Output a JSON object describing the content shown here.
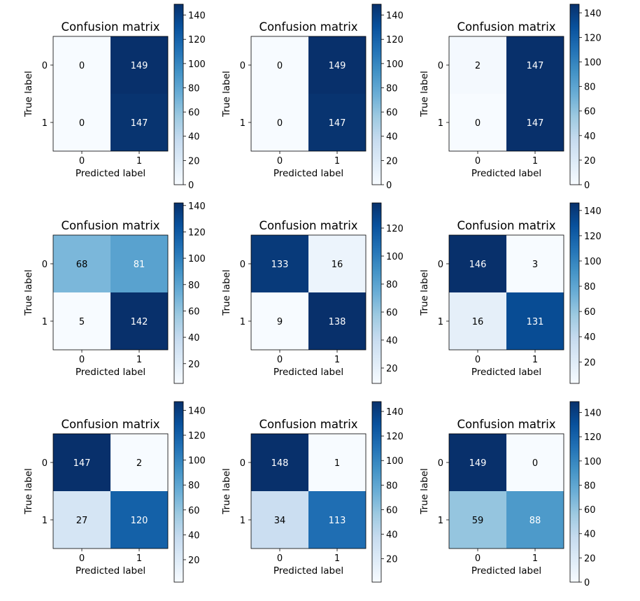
{
  "figure": {
    "colormap": "Blues",
    "colormap_stops": [
      "#f7fbff",
      "#deebf7",
      "#c6dbef",
      "#9ecae1",
      "#6baed6",
      "#4292c6",
      "#2171b5",
      "#08519c",
      "#08306b"
    ],
    "text_dark": "#000000",
    "text_light": "#ffffff"
  },
  "chart_data": [
    {
      "type": "heatmap",
      "title": "Confusion matrix",
      "xlabel": "Predicted label",
      "ylabel": "True label",
      "x_ticks": [
        "0",
        "1"
      ],
      "y_ticks": [
        "0",
        "1"
      ],
      "matrix": [
        [
          0,
          149
        ],
        [
          0,
          147
        ]
      ],
      "colorbar": {
        "min": 0,
        "max": 149,
        "ticks": [
          0,
          20,
          40,
          60,
          80,
          100,
          120,
          140
        ]
      }
    },
    {
      "type": "heatmap",
      "title": "Confusion matrix",
      "xlabel": "Predicted label",
      "ylabel": "True label",
      "x_ticks": [
        "0",
        "1"
      ],
      "y_ticks": [
        "0",
        "1"
      ],
      "matrix": [
        [
          0,
          149
        ],
        [
          0,
          147
        ]
      ],
      "colorbar": {
        "min": 0,
        "max": 149,
        "ticks": [
          0,
          20,
          40,
          60,
          80,
          100,
          120,
          140
        ]
      }
    },
    {
      "type": "heatmap",
      "title": "Confusion matrix",
      "xlabel": "Predicted label",
      "ylabel": "True label",
      "x_ticks": [
        "0",
        "1"
      ],
      "y_ticks": [
        "0",
        "1"
      ],
      "matrix": [
        [
          2,
          147
        ],
        [
          0,
          147
        ]
      ],
      "colorbar": {
        "min": 0,
        "max": 147,
        "ticks": [
          0,
          20,
          40,
          60,
          80,
          100,
          120,
          140
        ]
      }
    },
    {
      "type": "heatmap",
      "title": "Confusion matrix",
      "xlabel": "Predicted label",
      "ylabel": "True label",
      "x_ticks": [
        "0",
        "1"
      ],
      "y_ticks": [
        "0",
        "1"
      ],
      "matrix": [
        [
          68,
          81
        ],
        [
          5,
          142
        ]
      ],
      "colorbar": {
        "min": 5,
        "max": 142,
        "ticks": [
          20,
          40,
          60,
          80,
          100,
          120,
          140
        ]
      }
    },
    {
      "type": "heatmap",
      "title": "Confusion matrix",
      "xlabel": "Predicted label",
      "ylabel": "True label",
      "x_ticks": [
        "0",
        "1"
      ],
      "y_ticks": [
        "0",
        "1"
      ],
      "matrix": [
        [
          133,
          16
        ],
        [
          9,
          138
        ]
      ],
      "colorbar": {
        "min": 9,
        "max": 138,
        "ticks": [
          20,
          40,
          60,
          80,
          100,
          120
        ]
      }
    },
    {
      "type": "heatmap",
      "title": "Confusion matrix",
      "xlabel": "Predicted label",
      "ylabel": "True label",
      "x_ticks": [
        "0",
        "1"
      ],
      "y_ticks": [
        "0",
        "1"
      ],
      "matrix": [
        [
          146,
          3
        ],
        [
          16,
          131
        ]
      ],
      "colorbar": {
        "min": 3,
        "max": 146,
        "ticks": [
          20,
          40,
          60,
          80,
          100,
          120,
          140
        ]
      }
    },
    {
      "type": "heatmap",
      "title": "Confusion matrix",
      "xlabel": "Predicted label",
      "ylabel": "True label",
      "x_ticks": [
        "0",
        "1"
      ],
      "y_ticks": [
        "0",
        "1"
      ],
      "matrix": [
        [
          147,
          2
        ],
        [
          27,
          120
        ]
      ],
      "colorbar": {
        "min": 2,
        "max": 147,
        "ticks": [
          20,
          40,
          60,
          80,
          100,
          120,
          140
        ]
      }
    },
    {
      "type": "heatmap",
      "title": "Confusion matrix",
      "xlabel": "Predicted label",
      "ylabel": "True label",
      "x_ticks": [
        "0",
        "1"
      ],
      "y_ticks": [
        "0",
        "1"
      ],
      "matrix": [
        [
          148,
          1
        ],
        [
          34,
          113
        ]
      ],
      "colorbar": {
        "min": 1,
        "max": 148,
        "ticks": [
          20,
          40,
          60,
          80,
          100,
          120,
          140
        ]
      }
    },
    {
      "type": "heatmap",
      "title": "Confusion matrix",
      "xlabel": "Predicted label",
      "ylabel": "True label",
      "x_ticks": [
        "0",
        "1"
      ],
      "y_ticks": [
        "0",
        "1"
      ],
      "matrix": [
        [
          149,
          0
        ],
        [
          59,
          88
        ]
      ],
      "colorbar": {
        "min": 0,
        "max": 149,
        "ticks": [
          0,
          20,
          40,
          60,
          80,
          100,
          120,
          140
        ]
      }
    }
  ]
}
